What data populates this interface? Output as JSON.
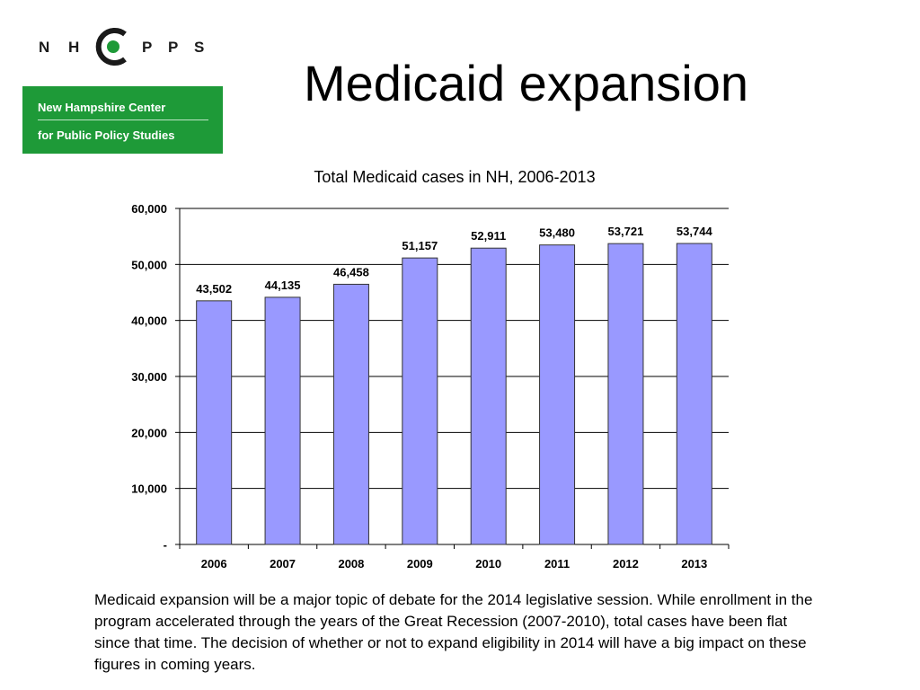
{
  "title": "Medicaid expansion",
  "logo": {
    "letters": [
      "N",
      "H",
      "C",
      "P",
      "P",
      "S"
    ],
    "line1": "New Hampshire Center",
    "line2": "for Public Policy Studies",
    "colors": {
      "green": "#1e9a38",
      "dot": "#1e9a38"
    }
  },
  "chart_data": {
    "type": "bar",
    "title": "Total Medicaid cases in NH, 2006-2013",
    "xlabel": "",
    "ylabel": "",
    "categories": [
      "2006",
      "2007",
      "2008",
      "2009",
      "2010",
      "2011",
      "2012",
      "2013"
    ],
    "values": [
      43502,
      44135,
      46458,
      51157,
      52911,
      53480,
      53721,
      53744
    ],
    "value_labels": [
      "43,502",
      "44,135",
      "46,458",
      "51,157",
      "52,911",
      "53,480",
      "53,721",
      "53,744"
    ],
    "ylim": [
      0,
      60000
    ],
    "yticks": [
      0,
      10000,
      20000,
      30000,
      40000,
      50000,
      60000
    ],
    "ytick_labels": [
      "-",
      "10,000",
      "20,000",
      "30,000",
      "40,000",
      "50,000",
      "60,000"
    ],
    "grid": true,
    "legend": "none",
    "bar_color": "#9999ff",
    "bar_edge_color": "#333333"
  },
  "caption": "Medicaid expansion will be a major topic of debate for the 2014 legislative session. While enrollment in the program accelerated through the years of the Great Recession (2007-2010), total cases have been flat since that time. The decision of whether or not to expand eligibility in 2014 will have a big impact on these figures in coming years."
}
